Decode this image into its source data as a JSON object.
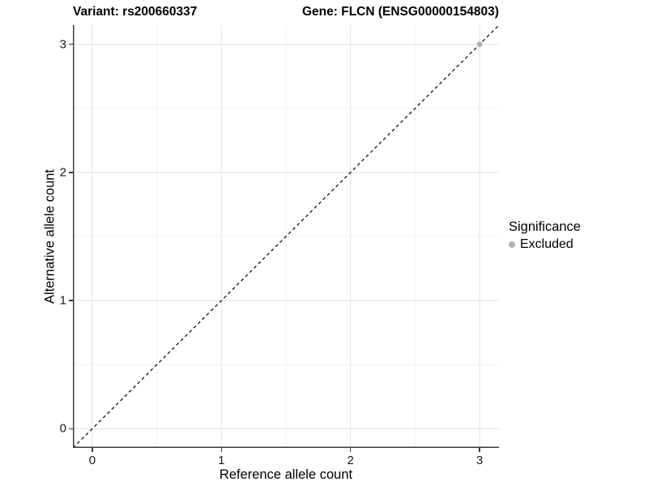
{
  "chart_data": {
    "type": "scatter",
    "title_left": "Variant: rs200660337",
    "title_right": "Gene: FLCN (ENSG00000154803)",
    "xlabel": "Reference allele count",
    "ylabel": "Alternative allele count",
    "xlim": [
      -0.15,
      3.15
    ],
    "ylim": [
      -0.15,
      3.15
    ],
    "x_ticks": [
      0,
      1,
      2,
      3
    ],
    "y_ticks": [
      0,
      1,
      2,
      3
    ],
    "grid": "major and minor gridlines on",
    "series": [
      {
        "name": "Excluded",
        "color": "#b3b3b3",
        "points": [
          {
            "x": 3,
            "y": 3
          }
        ]
      }
    ],
    "reference_line": {
      "type": "identity y=x",
      "style": "dashed",
      "color": "#111111"
    },
    "legend": {
      "title": "Significance",
      "position": "right",
      "entries": [
        {
          "label": "Excluded",
          "color": "#b3b3b3"
        }
      ]
    },
    "colors": {
      "axis_line": "#3c3c3c",
      "major_grid": "#e5e5e5",
      "minor_grid": "#f1f1f1",
      "tick_text": "#1a1a1a",
      "point": "#b3b3b3"
    }
  }
}
